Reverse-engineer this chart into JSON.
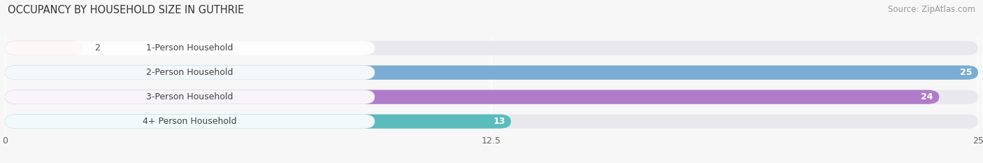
{
  "title": "OCCUPANCY BY HOUSEHOLD SIZE IN GUTHRIE",
  "source": "Source: ZipAtlas.com",
  "categories": [
    "1-Person Household",
    "2-Person Household",
    "3-Person Household",
    "4+ Person Household"
  ],
  "values": [
    2,
    25,
    24,
    13
  ],
  "bar_colors": [
    "#f0a0a8",
    "#7badd4",
    "#b07cca",
    "#5bbcbe"
  ],
  "bar_bg_color": "#e8e8ee",
  "xlim": [
    0,
    25
  ],
  "xticks": [
    0,
    12.5,
    25
  ],
  "label_inside_threshold": 10,
  "title_fontsize": 10.5,
  "source_fontsize": 8.5,
  "tick_fontsize": 9,
  "bar_label_fontsize": 9,
  "cat_label_fontsize": 9,
  "background_color": "#f7f7f7"
}
